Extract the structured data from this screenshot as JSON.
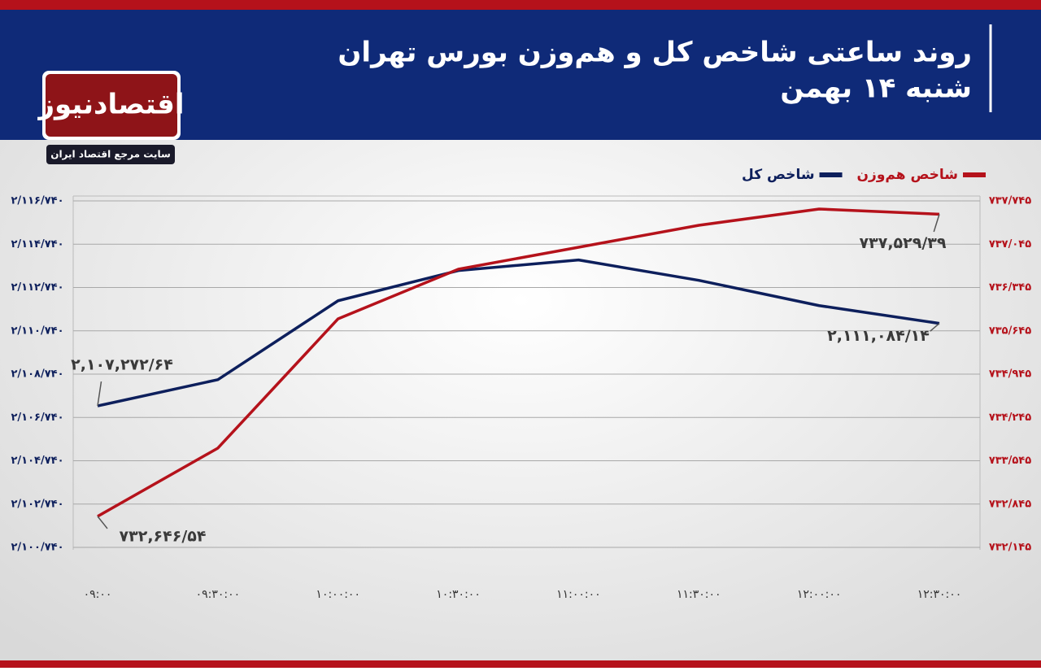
{
  "chart_data": {
    "type": "line",
    "title": "روند ساعتی شاخص کل و هم‌وزن بورس تهران",
    "subtitle": "شنبه ۱۴ بهمن",
    "brand": "اقتصادنیوز",
    "brand_tagline": "سایت مرجع اقتصاد ایران",
    "categories": [
      "۰۹:۰۰",
      "۰۹:۳۰:۰۰",
      "۱۰:۰۰:۰۰",
      "۱۰:۳۰:۰۰",
      "۱۱:۰۰:۰۰",
      "۱۱:۳۰:۰۰",
      "۱۲:۰۰:۰۰",
      "۱۲:۳۰:۰۰"
    ],
    "series": [
      {
        "name": "شاخص کل",
        "color": "#0d1f5c",
        "values": [
          2107272.64,
          2108484,
          2112130,
          2113522,
          2114011,
          2113071,
          2111905,
          2111084.14
        ],
        "value_labels": [
          "۲,۱۰۷,۲۷۲/۶۴",
          null,
          null,
          null,
          null,
          null,
          null,
          "۲,۱۱۱,۰۸۴/۱۴"
        ]
      },
      {
        "name": "شاخص هم‌وزن",
        "color": "#b5121b",
        "axis": "y2",
        "values": [
          732646.54,
          733749,
          735839,
          736641,
          736996,
          737351,
          737614,
          737529.39
        ],
        "value_labels": [
          "۷۳۲,۶۴۶/۵۴",
          null,
          null,
          null,
          null,
          null,
          null,
          "۷۳۷,۵۲۹/۳۹"
        ]
      }
    ],
    "ylim": [
      2100740,
      2116740
    ],
    "yticks": [
      {
        "value": 2100740,
        "label": "۲/۱۰۰/۷۴۰"
      },
      {
        "value": 2102740,
        "label": "۲/۱۰۲/۷۴۰"
      },
      {
        "value": 2104740,
        "label": "۲/۱۰۴/۷۴۰"
      },
      {
        "value": 2106740,
        "label": "۲/۱۰۶/۷۴۰"
      },
      {
        "value": 2108740,
        "label": "۲/۱۰۸/۷۴۰"
      },
      {
        "value": 2110740,
        "label": "۲/۱۱۰/۷۴۰"
      },
      {
        "value": 2112740,
        "label": "۲/۱۱۲/۷۴۰"
      },
      {
        "value": 2114740,
        "label": "۲/۱۱۴/۷۴۰"
      },
      {
        "value": 2116740,
        "label": "۲/۱۱۶/۷۴۰"
      }
    ],
    "y2lim": [
      732145,
      737745
    ],
    "y2ticks": [
      {
        "value": 732145,
        "label": "۷۳۲/۱۴۵"
      },
      {
        "value": 732845,
        "label": "۷۳۲/۸۴۵"
      },
      {
        "value": 733545,
        "label": "۷۳۳/۵۴۵"
      },
      {
        "value": 734245,
        "label": "۷۳۴/۲۴۵"
      },
      {
        "value": 734945,
        "label": "۷۳۴/۹۴۵"
      },
      {
        "value": 735645,
        "label": "۷۳۵/۶۴۵"
      },
      {
        "value": 736345,
        "label": "۷۳۶/۳۴۵"
      },
      {
        "value": 737045,
        "label": "۷۳۷/۰۴۵"
      },
      {
        "value": 737745,
        "label": "۷۳۷/۷۴۵"
      }
    ],
    "grid": true
  }
}
